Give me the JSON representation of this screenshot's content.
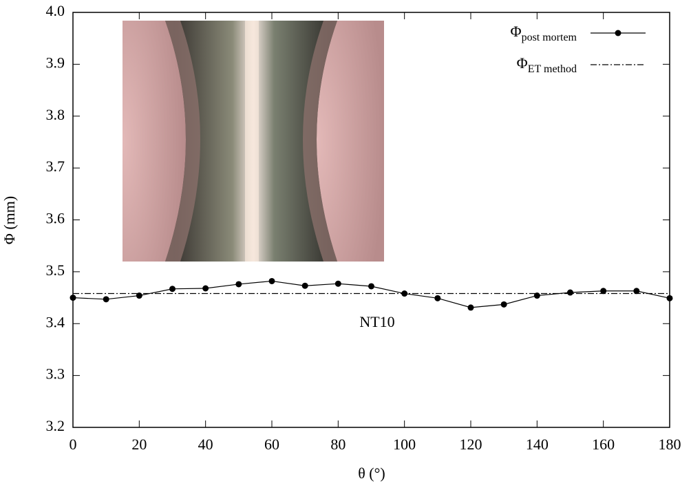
{
  "chart_data": {
    "type": "line",
    "xlabel": "θ (°)",
    "ylabel": "Φ (mm)",
    "x": [
      0,
      10,
      20,
      30,
      40,
      50,
      60,
      70,
      80,
      90,
      100,
      110,
      120,
      130,
      140,
      150,
      160,
      170,
      180
    ],
    "series": [
      {
        "name": "Φ",
        "subscript": "post mortem",
        "color": "#000000",
        "style": "solid-marker",
        "values": [
          3.45,
          3.447,
          3.454,
          3.467,
          3.468,
          3.476,
          3.482,
          3.473,
          3.477,
          3.472,
          3.458,
          3.449,
          3.431,
          3.437,
          3.454,
          3.46,
          3.463,
          3.463,
          3.449
        ]
      },
      {
        "name": "Φ",
        "subscript": "ET method",
        "color": "#000000",
        "style": "dashdot",
        "value": 3.458
      }
    ],
    "annotations": [
      "NT10"
    ],
    "xlim": [
      0,
      180
    ],
    "xticks": [
      0,
      20,
      40,
      60,
      80,
      100,
      120,
      140,
      160,
      180
    ],
    "ylim": [
      3.2,
      4.0
    ],
    "yticks": [
      3.2,
      3.3,
      3.4,
      3.5,
      3.6,
      3.7,
      3.8,
      3.9,
      {
        "value": 4.0,
        "label": "4.0"
      }
    ],
    "legend": "upper-right"
  }
}
